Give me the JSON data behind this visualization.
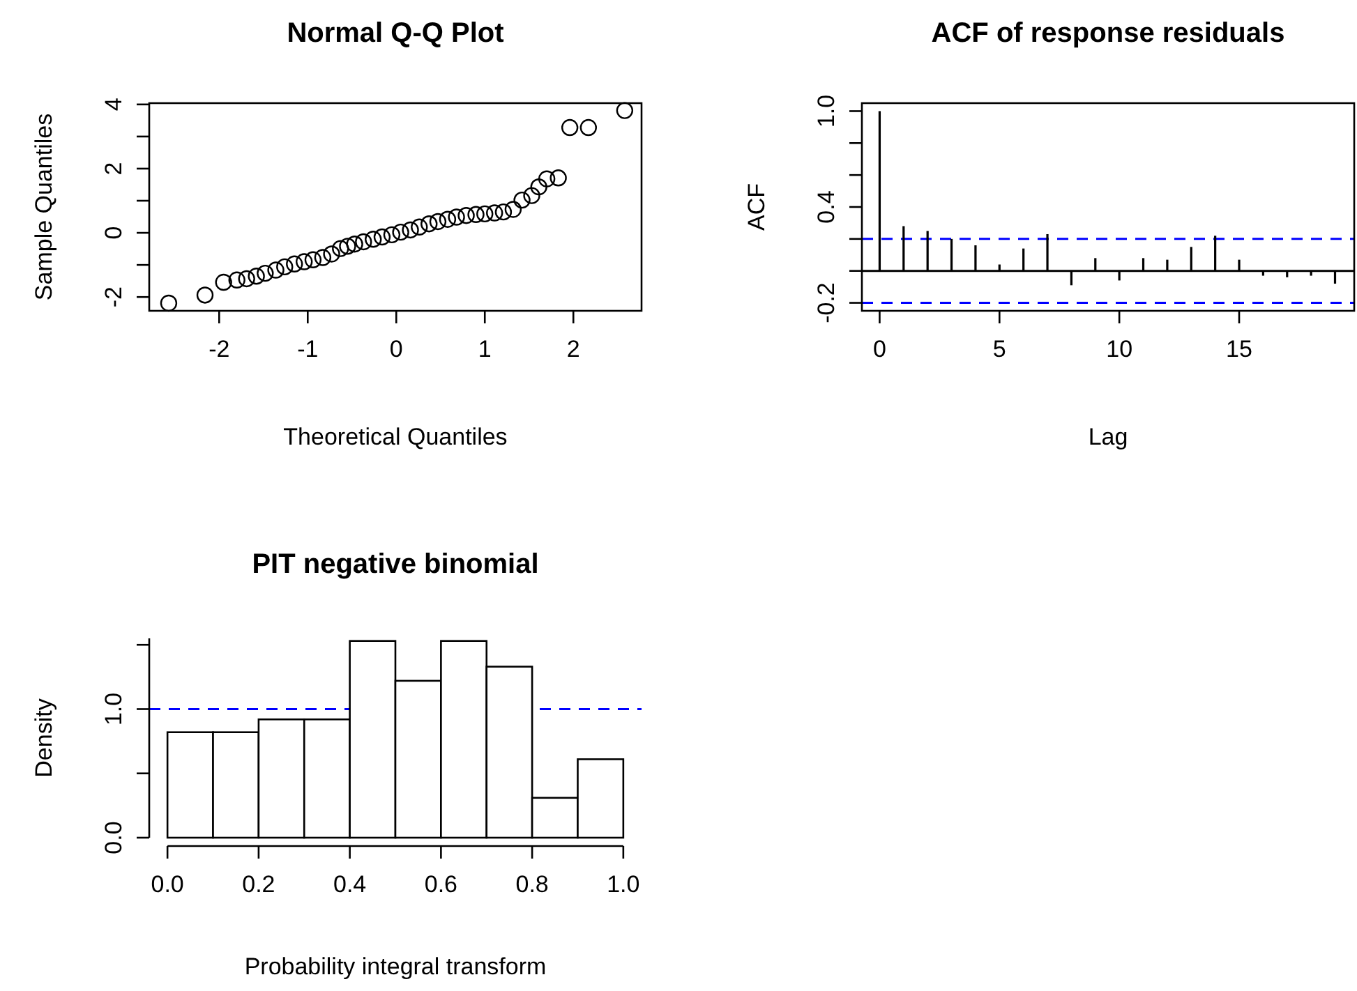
{
  "chart_data": [
    {
      "type": "scatter",
      "title": "Normal Q-Q Plot",
      "xlabel": "Theoretical Quantiles",
      "ylabel": "Sample Quantiles",
      "color": "#000000",
      "marker": "circle",
      "grid": false,
      "x": [
        -2.57,
        -2.16,
        -1.95,
        -1.8,
        -1.69,
        -1.58,
        -1.48,
        -1.36,
        -1.26,
        -1.15,
        -1.04,
        -0.94,
        -0.83,
        -0.73,
        -0.63,
        -0.55,
        -0.47,
        -0.37,
        -0.26,
        -0.16,
        -0.05,
        0.05,
        0.16,
        0.26,
        0.37,
        0.47,
        0.58,
        0.68,
        0.79,
        0.9,
        1.0,
        1.11,
        1.21,
        1.32,
        1.42,
        1.53,
        1.61,
        1.7,
        1.83,
        1.96,
        2.17,
        2.58
      ],
      "values": [
        -2.19,
        -1.94,
        -1.54,
        -1.47,
        -1.43,
        -1.35,
        -1.26,
        -1.16,
        -1.06,
        -0.97,
        -0.9,
        -0.84,
        -0.77,
        -0.66,
        -0.49,
        -0.42,
        -0.35,
        -0.28,
        -0.2,
        -0.13,
        -0.06,
        0.02,
        0.09,
        0.18,
        0.28,
        0.35,
        0.42,
        0.49,
        0.54,
        0.57,
        0.59,
        0.62,
        0.65,
        0.73,
        1.02,
        1.16,
        1.43,
        1.68,
        1.71,
        3.28,
        3.28,
        3.81
      ],
      "xlim": [
        -2.79,
        2.77
      ],
      "ylim": [
        -2.43,
        4.04
      ],
      "xticks": [
        -2,
        -1,
        0,
        1,
        2
      ],
      "yticks": [
        -2,
        {
          "value": -1,
          "label": null
        },
        0,
        {
          "value": 1,
          "label": null
        },
        2,
        {
          "value": 3,
          "label": null
        },
        4
      ]
    },
    {
      "type": "bar",
      "title": "ACF of response residuals",
      "xlabel": "Lag",
      "ylabel": "ACF",
      "color": "#000000",
      "grid": false,
      "x": [
        0,
        1,
        2,
        3,
        4,
        5,
        6,
        7,
        8,
        9,
        10,
        11,
        12,
        13,
        14,
        15,
        16,
        17,
        18,
        19
      ],
      "values": [
        1.0,
        0.28,
        0.25,
        0.2,
        0.16,
        0.04,
        0.14,
        0.23,
        -0.09,
        0.08,
        -0.06,
        0.08,
        0.07,
        0.15,
        0.22,
        0.07,
        -0.03,
        -0.04,
        -0.03,
        -0.08
      ],
      "xlim": [
        -0.74,
        19.8
      ],
      "ylim": [
        -0.25,
        1.05
      ],
      "xticks": [
        0,
        5,
        10,
        15
      ],
      "yticks": [
        -0.2,
        {
          "value": 0,
          "label": null
        },
        {
          "value": 0.2,
          "label": null
        },
        0.4,
        {
          "value": 0.6,
          "label": null
        },
        {
          "value": 0.8,
          "label": null
        },
        {
          "value": 1,
          "label": "1.0"
        }
      ],
      "ref_lines": [
        {
          "axis": "y",
          "value": 0,
          "color": "#000000",
          "line_style": "solid"
        },
        {
          "axis": "y",
          "value": 0.2,
          "color": "#0000ff",
          "line_style": "dashed"
        },
        {
          "axis": "y",
          "value": -0.2,
          "color": "#0000ff",
          "line_style": "dashed"
        }
      ]
    },
    {
      "type": "histogram",
      "title": "PIT negative binomial",
      "xlabel": "Probability integral transform",
      "ylabel": "Density",
      "color": "#ffffff",
      "grid": false,
      "bins": [
        0,
        0.1,
        0.2,
        0.3,
        0.4,
        0.5,
        0.6,
        0.7,
        0.8,
        0.9,
        1.0
      ],
      "values": [
        0.82,
        0.82,
        0.92,
        0.92,
        1.53,
        1.22,
        1.53,
        1.33,
        0.31,
        0.61
      ],
      "xlim": [
        -0.04,
        1.04
      ],
      "ylim": [
        0,
        1.55
      ],
      "xticks": [
        {
          "value": 0,
          "label": "0.0"
        },
        0.2,
        0.4,
        0.6,
        0.8,
        {
          "value": 1,
          "label": "1.0"
        }
      ],
      "yticks": [
        {
          "value": 0,
          "label": "0.0"
        },
        {
          "value": 0.5,
          "label": null
        },
        {
          "value": 1,
          "label": "1.0"
        },
        {
          "value": 1.5,
          "label": null
        }
      ],
      "ref_lines": [
        {
          "axis": "y",
          "value": 1,
          "color": "#0000ff",
          "line_style": "dashed"
        }
      ]
    }
  ]
}
